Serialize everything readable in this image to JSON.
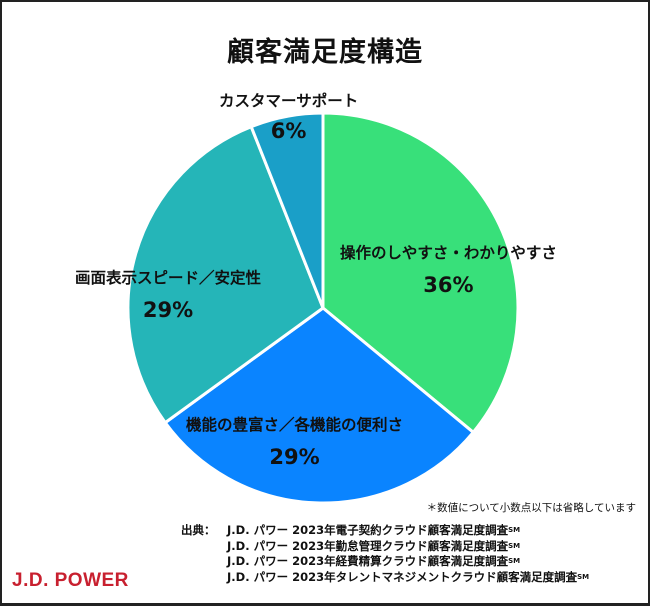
{
  "title": "顧客満足度構造",
  "chart_data": {
    "type": "pie",
    "title": "顧客満足度構造",
    "start_angle": "top (12 o'clock), clockwise",
    "slices": [
      {
        "label": "操作のしやすさ・わかりやすさ",
        "value": 36,
        "display": "36%",
        "color": "#38E07A"
      },
      {
        "label": "機能の豊富さ／各機能の便利さ",
        "value": 29,
        "display": "29%",
        "color": "#0A84FF"
      },
      {
        "label": "画面表示スピード／安定性",
        "value": 29,
        "display": "29%",
        "color": "#25B5B8"
      },
      {
        "label": "カスタマーサポート",
        "value": 6,
        "display": "6%",
        "color": "#1A9FC8"
      }
    ]
  },
  "note": "＊数値について小数点以下は省略しています",
  "source": {
    "prefix": "出典：",
    "lines": [
      "J.D. パワー 2023年電子契約クラウド顧客満足度調査",
      "J.D. パワー 2023年勤怠管理クラウド顧客満足度調査",
      "J.D. パワー 2023年経費精算クラウド顧客満足度調査",
      "J.D. パワー 2023年タレントマネジメントクラウド顧客満足度調査"
    ],
    "mark": "SM"
  },
  "logo": "J.D. POWER"
}
